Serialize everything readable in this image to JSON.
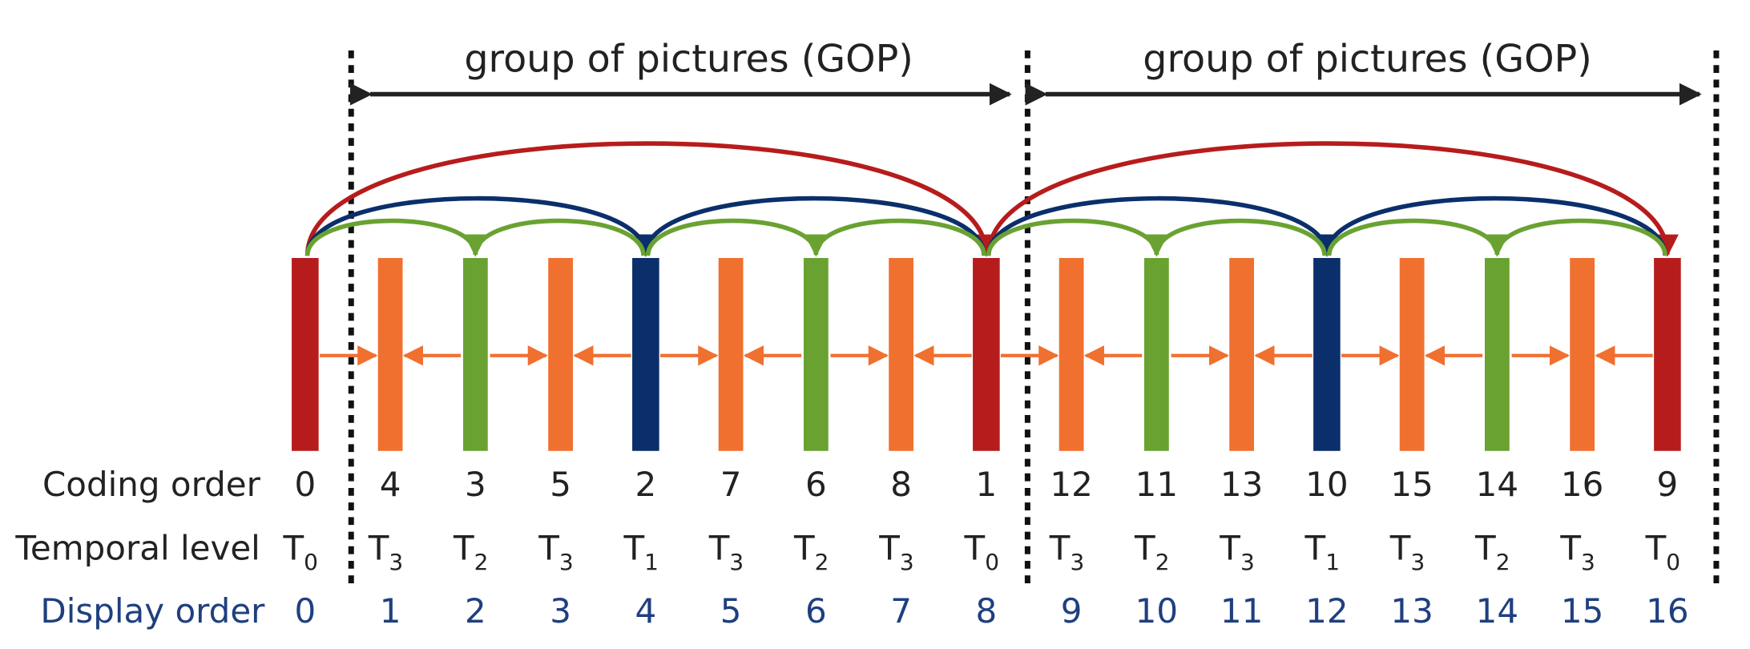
{
  "gops": [
    {
      "label": "group of pictures (GOP)"
    },
    {
      "label": "group of pictures (GOP)"
    }
  ],
  "rows": {
    "coding": "Coding order",
    "level": "Temporal level",
    "display": "Display order"
  },
  "frames": [
    {
      "coding": "0",
      "level": {
        "base": "T",
        "sub": "0"
      },
      "display": "0"
    },
    {
      "coding": "4",
      "level": {
        "base": "T",
        "sub": "3"
      },
      "display": "1"
    },
    {
      "coding": "3",
      "level": {
        "base": "T",
        "sub": "2"
      },
      "display": "2"
    },
    {
      "coding": "5",
      "level": {
        "base": "T",
        "sub": "3"
      },
      "display": "3"
    },
    {
      "coding": "2",
      "level": {
        "base": "T",
        "sub": "1"
      },
      "display": "4"
    },
    {
      "coding": "7",
      "level": {
        "base": "T",
        "sub": "3"
      },
      "display": "5"
    },
    {
      "coding": "6",
      "level": {
        "base": "T",
        "sub": "2"
      },
      "display": "6"
    },
    {
      "coding": "8",
      "level": {
        "base": "T",
        "sub": "3"
      },
      "display": "7"
    },
    {
      "coding": "1",
      "level": {
        "base": "T",
        "sub": "0"
      },
      "display": "8"
    },
    {
      "coding": "12",
      "level": {
        "base": "T",
        "sub": "3"
      },
      "display": "9"
    },
    {
      "coding": "11",
      "level": {
        "base": "T",
        "sub": "2"
      },
      "display": "10"
    },
    {
      "coding": "13",
      "level": {
        "base": "T",
        "sub": "3"
      },
      "display": "11"
    },
    {
      "coding": "10",
      "level": {
        "base": "T",
        "sub": "1"
      },
      "display": "12"
    },
    {
      "coding": "15",
      "level": {
        "base": "T",
        "sub": "3"
      },
      "display": "13"
    },
    {
      "coding": "14",
      "level": {
        "base": "T",
        "sub": "2"
      },
      "display": "14"
    },
    {
      "coding": "16",
      "level": {
        "base": "T",
        "sub": "3"
      },
      "display": "15"
    },
    {
      "coding": "9",
      "level": {
        "base": "T",
        "sub": "0"
      },
      "display": "16"
    }
  ]
}
